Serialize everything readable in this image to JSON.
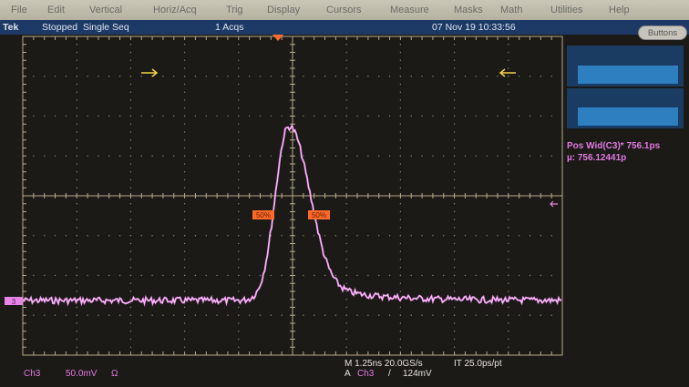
{
  "menu": [
    "File",
    "Edit",
    "Vertical",
    "Horiz/Acq",
    "Trig",
    "Display",
    "Cursors",
    "Measure",
    "Masks",
    "Math",
    "Utilities",
    "Help"
  ],
  "status": {
    "brand": "Tek",
    "state": "Stopped  Single Seq",
    "acqs": "1 Acqs",
    "datetime": "07 Nov 19 10:33:56"
  },
  "buttons_label": "Buttons",
  "measurement": {
    "line1": "Pos Wid(C3)* 756.1ps",
    "line2": "µ: 756.12441p"
  },
  "markers": {
    "left_level": "50%",
    "right_level": "50%",
    "channel": "3"
  },
  "footer": {
    "channel": "Ch3",
    "scale": "50.0mV",
    "coupling": "Ω",
    "horizontal": "M 1.25ns 20.0GS/s",
    "interp": "IT 25.0ps/pt",
    "trigger_prefix": "A",
    "trigger_channel": "Ch3",
    "trigger_slope": "/",
    "trigger_level": "124mV"
  },
  "colors": {
    "trace": "#e784e6",
    "graticule": "#b9a98a",
    "marker": "#ff6a2b",
    "arrow": "#f2d24a"
  }
}
